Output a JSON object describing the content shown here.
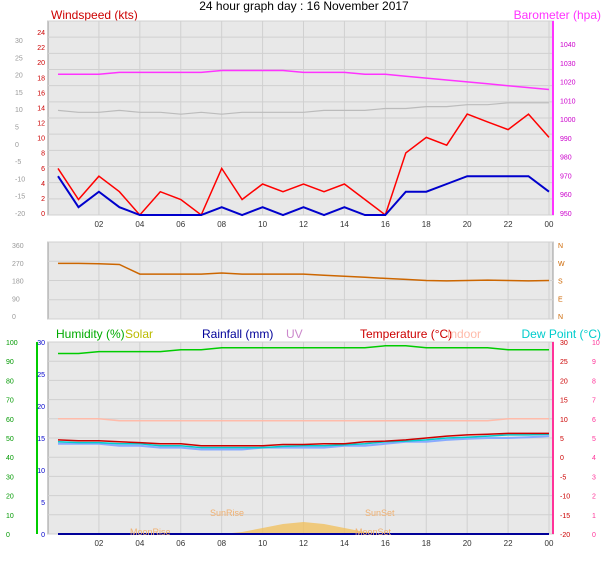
{
  "title": "24 hour graph day : 16 November 2017",
  "colors": {
    "wind": "#ff0000",
    "gust_blue": "#0000cc",
    "baro": "#ff33ff",
    "grey": "#bbbbbb",
    "dir": "#cc6600",
    "humidity": "#00cc00",
    "solar": "#bbbb00",
    "rain": "#000099",
    "uv": "#cc88cc",
    "temp": "#cc0000",
    "indoor": "#ffbbaa",
    "dew": "#00cccc",
    "dew_light": "#88aaff"
  },
  "chart_data": [
    {
      "type": "line",
      "panel": "wind_baro",
      "legend": [
        "Windspeed (kts)",
        "Barometer (hpa)"
      ],
      "left_axis_outer": [
        "30",
        "25",
        "20",
        "15",
        "10",
        "5",
        "0",
        "-5",
        "-10",
        "-15",
        "-20"
      ],
      "left_axis_inner": [
        "24",
        "22",
        "20",
        "18",
        "16",
        "14",
        "12",
        "10",
        "8",
        "6",
        "4",
        "2",
        "0"
      ],
      "right_axis": [
        "1040",
        "1030",
        "1020",
        "1010",
        "1000",
        "990",
        "980",
        "970",
        "960",
        "950"
      ],
      "x_ticks": [
        "02",
        "04",
        "06",
        "08",
        "10",
        "12",
        "14",
        "16",
        "18",
        "20",
        "22",
        "00"
      ],
      "ylim_wind": [
        0,
        25
      ],
      "ylim_baro": [
        945,
        1047
      ],
      "x_hours": [
        0,
        1,
        2,
        3,
        4,
        5,
        6,
        7,
        8,
        9,
        10,
        11,
        12,
        13,
        14,
        15,
        16,
        17,
        18,
        19,
        20,
        21,
        22,
        23,
        24
      ],
      "series": [
        {
          "name": "Windspeed (kts)",
          "color": "#ff0000",
          "values": [
            6,
            2,
            5,
            3,
            0,
            3,
            2,
            0,
            6,
            2,
            4,
            3,
            4,
            3,
            4,
            2,
            0,
            8,
            10,
            9,
            13,
            12,
            11,
            13,
            10
          ]
        },
        {
          "color": "#0000cc",
          "values": [
            5,
            1,
            3,
            1,
            0,
            0,
            0,
            0,
            1,
            0,
            1,
            0,
            1,
            0,
            1,
            0,
            0,
            3,
            3,
            4,
            5,
            5,
            5,
            5,
            3
          ]
        },
        {
          "name": "Barometer (hpa)",
          "color": "#ff33ff",
          "values": [
            1019,
            1019,
            1019,
            1020,
            1020,
            1020,
            1020,
            1020,
            1021,
            1021,
            1021,
            1021,
            1020,
            1020,
            1020,
            1019,
            1019,
            1018,
            1017,
            1016,
            1015,
            1014,
            1013,
            1012,
            1011
          ]
        },
        {
          "color": "#bbbbbb",
          "values": [
            1000,
            999,
            999,
            1000,
            999,
            999,
            998,
            999,
            998,
            999,
            999,
            999,
            999,
            1000,
            1000,
            1000,
            1001,
            1001,
            1002,
            1002,
            1003,
            1003,
            1004,
            1004,
            1004
          ]
        }
      ]
    },
    {
      "type": "line",
      "panel": "wind_direction",
      "left_axis": [
        "360",
        "270",
        "180",
        "90",
        "0"
      ],
      "right_axis": [
        "N",
        "W",
        "S",
        "E",
        "N"
      ],
      "ylim": [
        0,
        360
      ],
      "x_hours": [
        0,
        1,
        2,
        3,
        4,
        5,
        6,
        7,
        8,
        9,
        10,
        11,
        12,
        13,
        14,
        15,
        16,
        17,
        18,
        19,
        20,
        21,
        22,
        23,
        24
      ],
      "series": [
        {
          "color": "#cc6600",
          "values": [
            260,
            260,
            258,
            255,
            210,
            210,
            210,
            210,
            215,
            210,
            210,
            210,
            210,
            205,
            200,
            195,
            190,
            185,
            180,
            178,
            180,
            182,
            180,
            178,
            180
          ]
        }
      ]
    },
    {
      "type": "line",
      "panel": "temp_humidity",
      "legend": [
        "Humidity (%)",
        "Solar",
        "Rainfall (mm)",
        "UV",
        "Temperature (°C)",
        "Indoor",
        "Dew Point (°C)"
      ],
      "left_axis_outer": [
        "100",
        "90",
        "80",
        "70",
        "60",
        "50",
        "40",
        "30",
        "20",
        "10",
        "0"
      ],
      "left_axis_inner": [
        "30",
        "25",
        "20",
        "15",
        "10",
        "5",
        "0"
      ],
      "right_axis_outer": [
        "30",
        "25",
        "20",
        "15",
        "10",
        "5",
        "0",
        "-5",
        "-10",
        "-15",
        "-20"
      ],
      "right_axis_inner": [
        "10",
        "9",
        "8",
        "7",
        "6",
        "5",
        "4",
        "3",
        "2",
        "1",
        "0"
      ],
      "x_ticks": [
        "02",
        "04",
        "06",
        "08",
        "10",
        "12",
        "14",
        "16",
        "18",
        "20",
        "22",
        "00"
      ],
      "events": [
        "SunRise",
        "SunSet",
        "MoonSet",
        "MoonRise"
      ],
      "ylim_humidity": [
        0,
        100
      ],
      "ylim_temp": [
        -20,
        30
      ],
      "x_hours": [
        0,
        1,
        2,
        3,
        4,
        5,
        6,
        7,
        8,
        9,
        10,
        11,
        12,
        13,
        14,
        15,
        16,
        17,
        18,
        19,
        20,
        21,
        22,
        23,
        24
      ],
      "series": [
        {
          "name": "Humidity (%)",
          "color": "#00cc00",
          "values": [
            94,
            94,
            95,
            95,
            95,
            95,
            96,
            96,
            97,
            97,
            97,
            97,
            97,
            97,
            97,
            97,
            98,
            98,
            97,
            97,
            97,
            97,
            96,
            96,
            96
          ]
        },
        {
          "name": "Indoor",
          "color": "#ffbbaa",
          "values": [
            10,
            10,
            10,
            9.5,
            9.5,
            9.5,
            9.5,
            9.5,
            9.5,
            9.5,
            9.5,
            9.5,
            9.5,
            9.5,
            9.5,
            9.5,
            9.5,
            9.5,
            9.5,
            9.5,
            9.5,
            9.5,
            10,
            10,
            10
          ]
        },
        {
          "name": "Temperature (°C)",
          "color": "#cc0000",
          "values": [
            4.5,
            4.3,
            4.3,
            4,
            3.8,
            3.5,
            3.5,
            3,
            3,
            3,
            3,
            3.3,
            3.3,
            3.5,
            3.5,
            4,
            4.2,
            4.5,
            5,
            5.5,
            5.8,
            6,
            6.2,
            6.2,
            6.2
          ]
        },
        {
          "name": "Dew Point (°C)",
          "color": "#00cccc",
          "values": [
            4,
            3.8,
            3.8,
            3.5,
            3.5,
            3,
            3,
            2.5,
            2.5,
            2.5,
            2.5,
            2.8,
            3,
            3,
            3.2,
            3.5,
            4,
            4.2,
            4.5,
            5,
            5.2,
            5.5,
            5.8,
            5.8,
            6
          ]
        },
        {
          "color": "#88aaff",
          "values": [
            3.5,
            3.5,
            3.5,
            3,
            3,
            2.5,
            2.5,
            2,
            2,
            2,
            2.5,
            2.5,
            2.5,
            2.5,
            3,
            3,
            3.5,
            4,
            4,
            4.5,
            4.8,
            5,
            5,
            5.2,
            5.5
          ]
        },
        {
          "name": "Solar",
          "color": "#f0c060",
          "values": [
            0,
            0,
            0,
            0,
            0,
            0,
            0,
            0,
            0,
            0.5,
            1.5,
            2.5,
            3,
            2.5,
            1.5,
            0.5,
            0,
            0,
            0,
            0,
            0,
            0,
            0,
            0,
            0
          ]
        },
        {
          "name": "Rainfall (mm)",
          "color": "#000099",
          "values": [
            0,
            0,
            0,
            0,
            0,
            0,
            0,
            0,
            0,
            0,
            0,
            0,
            0,
            0,
            0,
            0,
            0,
            0,
            0,
            0,
            0,
            0,
            0,
            0,
            0
          ]
        }
      ]
    }
  ]
}
